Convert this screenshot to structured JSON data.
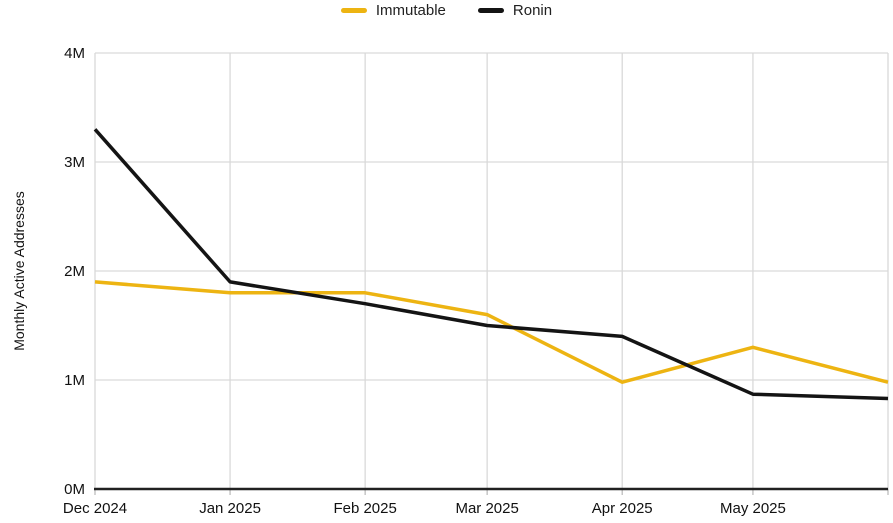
{
  "chart_data": {
    "type": "line",
    "title": "",
    "xlabel": "",
    "ylabel": "Monthly Active Addresses",
    "ylim": [
      0,
      4
    ],
    "grid": true,
    "legend_position": "top-center",
    "y_ticks": [
      {
        "value": 0,
        "label": "0M"
      },
      {
        "value": 1,
        "label": "1M"
      },
      {
        "value": 2,
        "label": "2M"
      },
      {
        "value": 3,
        "label": "3M"
      },
      {
        "value": 4,
        "label": "4M"
      }
    ],
    "categories": [
      "Dec 2024",
      "Jan 2025",
      "Feb 2025",
      "Mar 2025",
      "Apr 2025",
      "May 2025",
      ""
    ],
    "x_days": [
      0,
      31,
      62,
      90,
      121,
      151,
      182
    ],
    "series": [
      {
        "name": "Immutable",
        "color": "#EDB412",
        "values": [
          1.9,
          1.8,
          1.8,
          1.6,
          0.98,
          1.3,
          0.98
        ]
      },
      {
        "name": "Ronin",
        "color": "#141414",
        "values": [
          3.3,
          1.9,
          1.7,
          1.5,
          1.4,
          0.87,
          0.83
        ]
      }
    ]
  }
}
